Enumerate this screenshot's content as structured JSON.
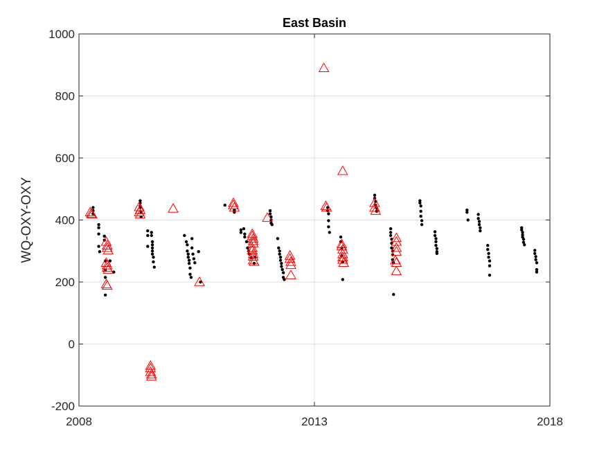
{
  "chart_data": {
    "type": "scatter",
    "title": "East Basin",
    "xlabel": "",
    "ylabel": "WQ-OXY-OXY",
    "xlim": [
      2008,
      2018
    ],
    "ylim": [
      -200,
      1000
    ],
    "xticks": [
      2008,
      2013,
      2018
    ],
    "xtick_labels": [
      "2008",
      "2013",
      "2018"
    ],
    "yticks": [
      -200,
      0,
      200,
      400,
      600,
      800,
      1000
    ],
    "ytick_labels": [
      "-200",
      "0",
      "200",
      "400",
      "600",
      "800",
      "1000"
    ],
    "grid": true,
    "legend": "none",
    "series": [
      {
        "marker": "dot",
        "color": "#000000",
        "points": [
          [
            2008.3,
            440
          ],
          [
            2008.3,
            430
          ],
          [
            2008.3,
            420
          ],
          [
            2008.42,
            385
          ],
          [
            2008.42,
            375
          ],
          [
            2008.42,
            355
          ],
          [
            2008.42,
            315
          ],
          [
            2008.44,
            298
          ],
          [
            2008.54,
            348
          ],
          [
            2008.54,
            335
          ],
          [
            2008.56,
            268
          ],
          [
            2008.56,
            238
          ],
          [
            2008.56,
            215
          ],
          [
            2008.56,
            158
          ],
          [
            2008.66,
            268
          ],
          [
            2008.74,
            232
          ],
          [
            2009.3,
            462
          ],
          [
            2009.3,
            455
          ],
          [
            2009.3,
            445
          ],
          [
            2009.3,
            440
          ],
          [
            2009.32,
            425
          ],
          [
            2009.32,
            410
          ],
          [
            2009.46,
            365
          ],
          [
            2009.46,
            350
          ],
          [
            2009.46,
            315
          ],
          [
            2009.54,
            360
          ],
          [
            2009.54,
            350
          ],
          [
            2009.56,
            330
          ],
          [
            2009.56,
            320
          ],
          [
            2009.56,
            310
          ],
          [
            2009.56,
            300
          ],
          [
            2009.56,
            290
          ],
          [
            2009.58,
            280
          ],
          [
            2009.58,
            265
          ],
          [
            2009.6,
            248
          ],
          [
            2010.24,
            350
          ],
          [
            2010.28,
            330
          ],
          [
            2010.3,
            320
          ],
          [
            2010.3,
            300
          ],
          [
            2010.32,
            290
          ],
          [
            2010.32,
            280
          ],
          [
            2010.34,
            270
          ],
          [
            2010.34,
            260
          ],
          [
            2010.36,
            245
          ],
          [
            2010.36,
            225
          ],
          [
            2010.38,
            215
          ],
          [
            2010.4,
            340
          ],
          [
            2010.4,
            310
          ],
          [
            2010.42,
            290
          ],
          [
            2010.44,
            275
          ],
          [
            2010.46,
            262
          ],
          [
            2010.54,
            298
          ],
          [
            2010.58,
            200
          ],
          [
            2011.1,
            448
          ],
          [
            2011.3,
            432
          ],
          [
            2011.3,
            425
          ],
          [
            2011.44,
            368
          ],
          [
            2011.44,
            360
          ],
          [
            2011.5,
            372
          ],
          [
            2011.52,
            355
          ],
          [
            2011.52,
            345
          ],
          [
            2011.56,
            330
          ],
          [
            2011.58,
            310
          ],
          [
            2011.6,
            300
          ],
          [
            2011.62,
            290
          ],
          [
            2011.66,
            278
          ],
          [
            2011.72,
            260
          ],
          [
            2011.74,
            280
          ],
          [
            2012.06,
            430
          ],
          [
            2012.06,
            420
          ],
          [
            2012.08,
            410
          ],
          [
            2012.08,
            400
          ],
          [
            2012.08,
            390
          ],
          [
            2012.1,
            385
          ],
          [
            2012.22,
            340
          ],
          [
            2012.24,
            310
          ],
          [
            2012.26,
            300
          ],
          [
            2012.26,
            290
          ],
          [
            2012.28,
            280
          ],
          [
            2012.28,
            270
          ],
          [
            2012.3,
            260
          ],
          [
            2012.3,
            250
          ],
          [
            2012.32,
            240
          ],
          [
            2012.34,
            230
          ],
          [
            2012.34,
            215
          ],
          [
            2012.36,
            208
          ],
          [
            2013.28,
            440
          ],
          [
            2013.28,
            430
          ],
          [
            2013.3,
            420
          ],
          [
            2013.3,
            398
          ],
          [
            2013.3,
            378
          ],
          [
            2013.32,
            360
          ],
          [
            2013.56,
            345
          ],
          [
            2013.56,
            330
          ],
          [
            2013.58,
            310
          ],
          [
            2013.58,
            285
          ],
          [
            2013.6,
            265
          ],
          [
            2013.6,
            208
          ],
          [
            2014.28,
            480
          ],
          [
            2014.28,
            470
          ],
          [
            2014.3,
            460
          ],
          [
            2014.3,
            448
          ],
          [
            2014.32,
            438
          ],
          [
            2014.32,
            428
          ],
          [
            2014.62,
            372
          ],
          [
            2014.62,
            360
          ],
          [
            2014.62,
            350
          ],
          [
            2014.64,
            338
          ],
          [
            2014.64,
            325
          ],
          [
            2014.64,
            310
          ],
          [
            2014.66,
            300
          ],
          [
            2014.66,
            288
          ],
          [
            2014.66,
            272
          ],
          [
            2014.68,
            262
          ],
          [
            2014.68,
            160
          ],
          [
            2015.24,
            462
          ],
          [
            2015.24,
            455
          ],
          [
            2015.26,
            445
          ],
          [
            2015.26,
            428
          ],
          [
            2015.26,
            412
          ],
          [
            2015.28,
            398
          ],
          [
            2015.28,
            385
          ],
          [
            2015.56,
            362
          ],
          [
            2015.56,
            350
          ],
          [
            2015.58,
            340
          ],
          [
            2015.58,
            330
          ],
          [
            2015.58,
            318
          ],
          [
            2015.6,
            308
          ],
          [
            2015.6,
            298
          ],
          [
            2015.6,
            292
          ],
          [
            2016.24,
            432
          ],
          [
            2016.24,
            425
          ],
          [
            2016.26,
            400
          ],
          [
            2016.48,
            418
          ],
          [
            2016.48,
            405
          ],
          [
            2016.5,
            395
          ],
          [
            2016.5,
            385
          ],
          [
            2016.52,
            375
          ],
          [
            2016.52,
            365
          ],
          [
            2016.68,
            318
          ],
          [
            2016.68,
            305
          ],
          [
            2016.7,
            292
          ],
          [
            2016.7,
            280
          ],
          [
            2016.72,
            268
          ],
          [
            2016.72,
            252
          ],
          [
            2016.72,
            222
          ],
          [
            2017.4,
            375
          ],
          [
            2017.4,
            368
          ],
          [
            2017.42,
            360
          ],
          [
            2017.42,
            352
          ],
          [
            2017.42,
            345
          ],
          [
            2017.44,
            338
          ],
          [
            2017.44,
            328
          ],
          [
            2017.46,
            320
          ],
          [
            2017.68,
            302
          ],
          [
            2017.68,
            292
          ],
          [
            2017.7,
            282
          ],
          [
            2017.7,
            272
          ],
          [
            2017.72,
            262
          ],
          [
            2017.72,
            240
          ],
          [
            2017.72,
            232
          ]
        ]
      },
      {
        "marker": "triangle",
        "color": "#ff0000",
        "points": [
          [
            2008.24,
            425
          ],
          [
            2008.26,
            420
          ],
          [
            2008.28,
            418
          ],
          [
            2008.58,
            330
          ],
          [
            2008.6,
            318
          ],
          [
            2008.6,
            310
          ],
          [
            2008.62,
            302
          ],
          [
            2008.58,
            262
          ],
          [
            2008.6,
            254
          ],
          [
            2008.6,
            246
          ],
          [
            2008.62,
            240
          ],
          [
            2008.58,
            193
          ],
          [
            2008.6,
            188
          ],
          [
            2009.28,
            442
          ],
          [
            2009.3,
            432
          ],
          [
            2009.28,
            425
          ],
          [
            2009.3,
            418
          ],
          [
            2009.52,
            -70
          ],
          [
            2009.52,
            -78
          ],
          [
            2009.52,
            -90
          ],
          [
            2009.54,
            -98
          ],
          [
            2009.54,
            -105
          ],
          [
            2010.0,
            437
          ],
          [
            2010.56,
            200
          ],
          [
            2011.28,
            455
          ],
          [
            2011.28,
            448
          ],
          [
            2011.3,
            440
          ],
          [
            2011.68,
            355
          ],
          [
            2011.68,
            348
          ],
          [
            2011.7,
            340
          ],
          [
            2011.7,
            332
          ],
          [
            2011.7,
            325
          ],
          [
            2011.68,
            310
          ],
          [
            2011.68,
            302
          ],
          [
            2011.7,
            290
          ],
          [
            2011.7,
            282
          ],
          [
            2011.7,
            270
          ],
          [
            2011.72,
            265
          ],
          [
            2012.0,
            407
          ],
          [
            2012.48,
            285
          ],
          [
            2012.48,
            275
          ],
          [
            2012.5,
            265
          ],
          [
            2012.5,
            255
          ],
          [
            2012.5,
            222
          ],
          [
            2013.2,
            890
          ],
          [
            2013.24,
            445
          ],
          [
            2013.26,
            440
          ],
          [
            2013.6,
            558
          ],
          [
            2013.58,
            322
          ],
          [
            2013.58,
            315
          ],
          [
            2013.6,
            305
          ],
          [
            2013.6,
            290
          ],
          [
            2013.6,
            280
          ],
          [
            2013.6,
            272
          ],
          [
            2013.62,
            262
          ],
          [
            2014.28,
            455
          ],
          [
            2014.28,
            440
          ],
          [
            2014.3,
            430
          ],
          [
            2014.74,
            342
          ],
          [
            2014.74,
            330
          ],
          [
            2014.74,
            310
          ],
          [
            2014.74,
            298
          ],
          [
            2014.72,
            270
          ],
          [
            2014.74,
            262
          ],
          [
            2014.74,
            235
          ]
        ]
      }
    ]
  }
}
